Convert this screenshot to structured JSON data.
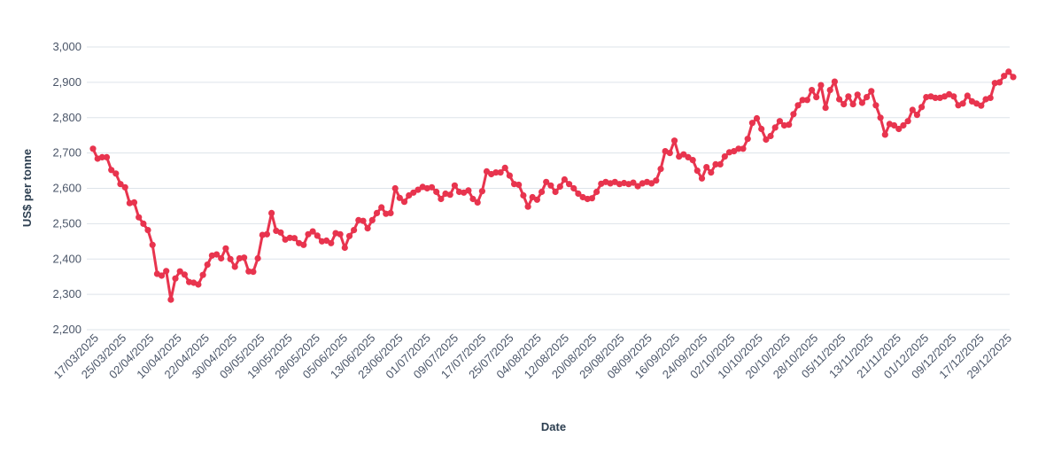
{
  "chart_data": {
    "type": "line",
    "title": "",
    "xlabel": "Date",
    "ylabel": "US$ per tonne",
    "ylim": [
      2200,
      3000
    ],
    "yticks": [
      2200,
      2300,
      2400,
      2500,
      2600,
      2700,
      2800,
      2900,
      3000
    ],
    "ytick_labels": [
      "2,200",
      "2,300",
      "2,400",
      "2,500",
      "2,600",
      "2,700",
      "2,800",
      "2,900",
      "3,000"
    ],
    "xtick_labels": [
      "17/03/2025",
      "25/03/2025",
      "02/04/2025",
      "10/04/2025",
      "22/04/2025",
      "30/04/2025",
      "09/05/2025",
      "19/05/2025",
      "28/05/2025",
      "05/06/2025",
      "13/06/2025",
      "23/06/2025",
      "01/07/2025",
      "09/07/2025",
      "17/07/2025",
      "25/07/2025",
      "04/08/2025",
      "12/08/2025",
      "20/08/2025",
      "29/08/2025",
      "08/09/2025",
      "16/09/2025",
      "24/09/2025",
      "02/10/2025",
      "10/10/2025",
      "20/10/2025",
      "28/10/2025",
      "05/11/2025",
      "13/11/2025",
      "21/11/2025",
      "01/12/2025",
      "09/12/2025",
      "17/12/2025",
      "29/12/2025"
    ],
    "grid": true,
    "legend": "none",
    "line_color": "#e8344e",
    "series": [
      {
        "values": [
          2712,
          2684,
          2688,
          2688,
          2652,
          2642,
          2612,
          2603,
          2558,
          2560,
          2518,
          2500,
          2482,
          2440,
          2358,
          2353,
          2366,
          2285,
          2345,
          2365,
          2356,
          2335,
          2333,
          2328,
          2355,
          2384,
          2410,
          2413,
          2402,
          2430,
          2400,
          2378,
          2402,
          2404,
          2365,
          2364,
          2402,
          2468,
          2470,
          2530,
          2480,
          2475,
          2455,
          2460,
          2459,
          2445,
          2440,
          2470,
          2478,
          2466,
          2450,
          2452,
          2445,
          2473,
          2470,
          2432,
          2465,
          2482,
          2510,
          2508,
          2487,
          2510,
          2530,
          2546,
          2528,
          2530,
          2600,
          2573,
          2562,
          2580,
          2588,
          2596,
          2604,
          2600,
          2603,
          2590,
          2570,
          2585,
          2582,
          2608,
          2590,
          2588,
          2594,
          2570,
          2560,
          2592,
          2648,
          2640,
          2645,
          2645,
          2658,
          2636,
          2612,
          2610,
          2580,
          2548,
          2575,
          2568,
          2590,
          2618,
          2608,
          2590,
          2605,
          2625,
          2612,
          2600,
          2585,
          2575,
          2570,
          2572,
          2590,
          2613,
          2618,
          2614,
          2618,
          2612,
          2615,
          2612,
          2616,
          2606,
          2614,
          2618,
          2614,
          2622,
          2655,
          2705,
          2700,
          2735,
          2690,
          2696,
          2688,
          2680,
          2650,
          2628,
          2660,
          2645,
          2668,
          2668,
          2690,
          2702,
          2705,
          2712,
          2712,
          2740,
          2785,
          2798,
          2768,
          2738,
          2748,
          2772,
          2790,
          2778,
          2780,
          2810,
          2835,
          2850,
          2850,
          2878,
          2858,
          2892,
          2828,
          2878,
          2902,
          2852,
          2838,
          2860,
          2838,
          2865,
          2842,
          2858,
          2875,
          2835,
          2800,
          2752,
          2782,
          2778,
          2768,
          2778,
          2790,
          2822,
          2808,
          2830,
          2858,
          2860,
          2856,
          2856,
          2860,
          2866,
          2860,
          2835,
          2840,
          2862,
          2846,
          2840,
          2834,
          2852,
          2856,
          2898,
          2900,
          2918,
          2930,
          2915
        ]
      }
    ]
  }
}
